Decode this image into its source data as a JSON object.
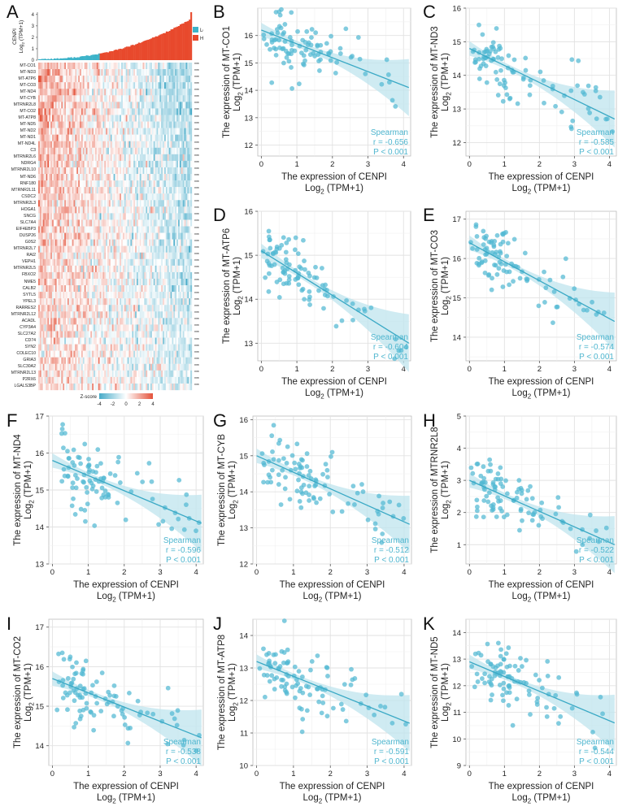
{
  "panels": {
    "A": "A",
    "B": "B",
    "C": "C",
    "D": "D",
    "E": "E",
    "F": "F",
    "G": "G",
    "H": "H",
    "I": "I",
    "J": "J",
    "K": "K"
  },
  "heatmap_panel": {
    "top_bar_ylabel_line1": "CENPI",
    "top_bar_ylabel_line2": "Log₂ (TPM+1)",
    "top_bar_ticks": [
      "0",
      "1",
      "2",
      "3",
      "4"
    ],
    "legend": [
      {
        "label": "Low",
        "color": "#3cb3c9"
      },
      {
        "label": "High",
        "color": "#e8492c"
      }
    ],
    "zscore_title": "Z-score",
    "zscore_ticks": [
      "-4",
      "-2",
      "0",
      "2",
      "4"
    ],
    "significance": "***",
    "genes": [
      "MT-CO1",
      "MT-ND3",
      "MT-ATP6",
      "MT-CO3",
      "MT-ND4",
      "MT-CYB",
      "MTRNR2L8",
      "MT-CO2",
      "MT-ATP8",
      "MT-ND5",
      "MT-ND2",
      "MT-ND1",
      "MT-ND4L",
      "C3",
      "MTRNR2L6",
      "NDRG4",
      "MTRNR2L10",
      "MT-ND6",
      "RNF180",
      "MTRNR2L11",
      "CSDC2",
      "MTRNR2L3",
      "HOGA1",
      "SNCG",
      "SLC7A4",
      "EIF4EBP3",
      "DUSP26",
      "G0S2",
      "MTRNR2L7",
      "RAI2",
      "VEPH1",
      "MTRNR2L5",
      "FBXO2",
      "NME5",
      "CALB2",
      "SYTL5",
      "YPEL3",
      "RARRES2",
      "MTRNR2L12",
      "ACADL",
      "CYP3A4",
      "SLC27A2",
      "CD74",
      "SYN2",
      "COLEC10",
      "GRIA3",
      "SLC30A2",
      "MTRNR2L13",
      "P2RX6",
      "LGALS3BP"
    ]
  },
  "chart_data": [
    {
      "type": "scatter",
      "panel": "B",
      "ylabel_line1": "The expression of MT-CO1",
      "ylabel_line2": "Log₂ (TPM+1)",
      "xlabel_line1": "The expression of CENPI",
      "xlabel_line2": "Log₂ (TPM+1)",
      "xlim": [
        -0.1,
        4.2
      ],
      "ylim": [
        11.6,
        17.0
      ],
      "xticks": [
        0,
        1,
        2,
        3,
        4
      ],
      "yticks": [
        12,
        13,
        14,
        15,
        16
      ],
      "fit": [
        16.2,
        14.1
      ],
      "stat_title": "Spearman",
      "stat_r": "r = -0.656",
      "stat_p": "P < 0.001"
    },
    {
      "type": "scatter",
      "panel": "C",
      "ylabel_line1": "The expression of MT-ND3",
      "ylabel_line2": "Log₂ (TPM+1)",
      "xlim": [
        -0.1,
        4.2
      ],
      "ylim": [
        11.6,
        16.0
      ],
      "xticks": [
        0,
        1,
        2,
        3,
        4
      ],
      "yticks": [
        12,
        13,
        14,
        15,
        16
      ],
      "fit": [
        14.8,
        12.7
      ],
      "stat_title": "Spearman",
      "stat_r": "r = -0.585",
      "stat_p": "P < 0.001",
      "xlabel_line1": "The expression of CENPI",
      "xlabel_line2": "Log₂ (TPM+1)"
    },
    {
      "type": "scatter",
      "panel": "D",
      "ylabel_line1": "The expression of MT-ATP6",
      "ylabel_line2": "Log₂ (TPM+1)",
      "xlim": [
        -0.1,
        4.2
      ],
      "ylim": [
        12.6,
        16.0
      ],
      "xticks": [
        0,
        1,
        2,
        3,
        4
      ],
      "yticks": [
        13,
        14,
        15,
        16
      ],
      "fit": [
        15.1,
        13.0
      ],
      "stat_title": "Spearman",
      "stat_r": "r = -0.604",
      "stat_p": "P < 0.001",
      "xlabel_line1": "The expression of CENPI",
      "xlabel_line2": "Log₂ (TPM+1)"
    },
    {
      "type": "scatter",
      "panel": "E",
      "ylabel_line1": "The expression of MT-CO3",
      "ylabel_line2": "Log₂ (TPM+1)",
      "xlim": [
        -0.1,
        4.2
      ],
      "ylim": [
        13.4,
        17.2
      ],
      "xticks": [
        0,
        1,
        2,
        3,
        4
      ],
      "yticks": [
        14,
        15,
        16,
        17
      ],
      "fit": [
        16.4,
        14.4
      ],
      "stat_title": "Spearman",
      "stat_r": "r = -0.574",
      "stat_p": "P < 0.001",
      "xlabel_line1": "The expression of CENPI",
      "xlabel_line2": "Log₂ (TPM+1)"
    },
    {
      "type": "scatter",
      "panel": "F",
      "ylabel_line1": "The expression of MT-ND4",
      "ylabel_line2": "Log₂ (TPM+1)",
      "xlim": [
        -0.1,
        4.2
      ],
      "ylim": [
        13.0,
        17.0
      ],
      "xticks": [
        0,
        1,
        2,
        3,
        4
      ],
      "yticks": [
        13,
        14,
        15,
        16,
        17
      ],
      "fit": [
        15.8,
        14.1
      ],
      "stat_title": "Spearman",
      "stat_r": "r = -0.596",
      "stat_p": "P < 0.001",
      "xlabel_line1": "The expression of CENPI",
      "xlabel_line2": "Log₂ (TPM+1)"
    },
    {
      "type": "scatter",
      "panel": "G",
      "ylabel_line1": "The expression of MT-CYB",
      "ylabel_line2": "Log₂ (TPM+1)",
      "xlim": [
        -0.1,
        4.2
      ],
      "ylim": [
        12.0,
        16.1
      ],
      "xticks": [
        0,
        1,
        2,
        3,
        4
      ],
      "yticks": [
        12,
        13,
        14,
        15,
        16
      ],
      "fit": [
        15.0,
        13.1
      ],
      "stat_title": "Spearman",
      "stat_r": "r = -0.512",
      "stat_p": "P < 0.001",
      "xlabel_line1": "The expression of CENPI",
      "xlabel_line2": "Log₂ (TPM+1)"
    },
    {
      "type": "scatter",
      "panel": "H",
      "ylabel_line1": "The expression of MTRNR2L8",
      "ylabel_line2": "Log₂ (TPM+1)",
      "xlim": [
        -0.1,
        4.2
      ],
      "ylim": [
        0.4,
        5.0
      ],
      "xticks": [
        0,
        1,
        2,
        3,
        4
      ],
      "yticks": [
        1,
        2,
        3,
        4,
        5
      ],
      "fit": [
        3.0,
        1.0
      ],
      "stat_title": "Spearman",
      "stat_r": "r = -0.522",
      "stat_p": "P < 0.001",
      "xlabel_line1": "The expression of CENPI",
      "xlabel_line2": "Log₂ (TPM+1)"
    },
    {
      "type": "scatter",
      "panel": "I",
      "ylabel_line1": "The expression of MT-CO2",
      "ylabel_line2": "Log₂ (TPM+1)",
      "xlim": [
        -0.1,
        4.2
      ],
      "ylim": [
        13.5,
        17.2
      ],
      "xticks": [
        0,
        1,
        2,
        3,
        4
      ],
      "yticks": [
        14,
        15,
        16,
        17
      ],
      "fit": [
        15.7,
        14.2
      ],
      "stat_title": "Spearman",
      "stat_r": "r = -0.538",
      "stat_p": "P < 0.001",
      "xlabel_line1": "The expression of CENPI",
      "xlabel_line2": "Log₂ (TPM+1)"
    },
    {
      "type": "scatter",
      "panel": "J",
      "ylabel_line1": "The expression of MT-ATP8",
      "ylabel_line2": "Log₂ (TPM+1)",
      "xlim": [
        -0.1,
        4.2
      ],
      "ylim": [
        10.0,
        14.5
      ],
      "xticks": [
        0,
        1,
        2,
        3,
        4
      ],
      "yticks": [
        10,
        11,
        12,
        13,
        14
      ],
      "fit": [
        13.2,
        11.3
      ],
      "stat_title": "Spearman",
      "stat_r": "r = -0.591",
      "stat_p": "P < 0.001",
      "xlabel_line1": "The expression of CENPI",
      "xlabel_line2": "Log₂ (TPM+1)"
    },
    {
      "type": "scatter",
      "panel": "K",
      "ylabel_line1": "The expression of MT-ND5",
      "ylabel_line2": "Log₂ (TPM+1)",
      "xlim": [
        -0.1,
        4.2
      ],
      "ylim": [
        9.0,
        14.5
      ],
      "xticks": [
        0,
        1,
        2,
        3,
        4
      ],
      "yticks": [
        9,
        10,
        11,
        12,
        13,
        14
      ],
      "fit": [
        12.9,
        10.6
      ],
      "stat_title": "Spearman",
      "stat_r": "r = -0.544",
      "stat_p": "P < 0.001",
      "xlabel_line1": "The expression of CENPI",
      "xlabel_line2": "Log₂ (TPM+1)"
    }
  ]
}
